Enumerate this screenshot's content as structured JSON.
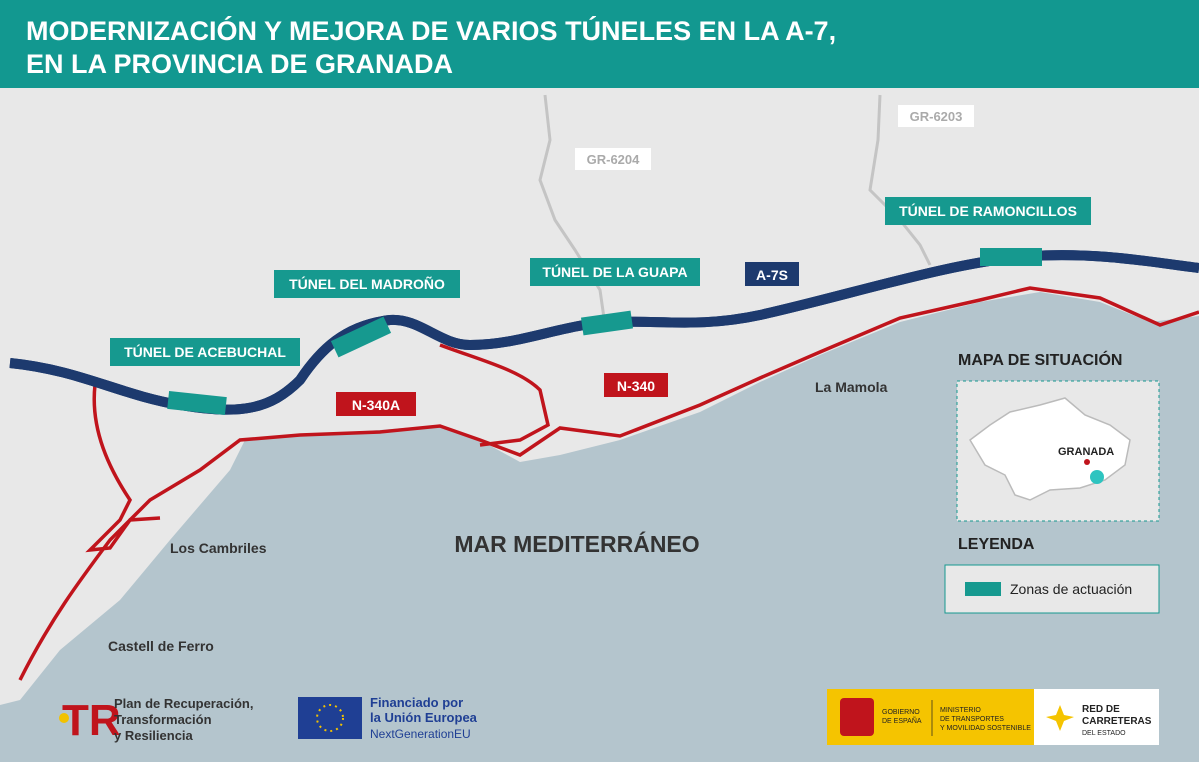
{
  "header": {
    "title": [
      "MODERNIZACIÓN Y MEJORA DE VARIOS TÚNELES EN LA A-7,",
      "EN LA PROVINCIA DE GRANADA"
    ]
  },
  "map": {
    "roads": [
      "GR-6204",
      "GR-6203",
      "A-7S",
      "N-340A",
      "N-340"
    ],
    "tunnels": [
      "TÚNEL DE ACEBUCHAL",
      "TÚNEL DEL MADROÑO",
      "TÚNEL DE LA GUAPA",
      "TÚNEL DE RAMONCILLOS"
    ],
    "places": [
      "La Mamola",
      "Los Cambriles",
      "Castell de Ferro"
    ],
    "sea": "MAR MEDITERRÁNEO"
  },
  "situation": {
    "title": "MAPA DE SITUACIÓN",
    "city": "GRANADA"
  },
  "legend": {
    "title": "LEYENDA",
    "items": [
      "Zonas de actuación"
    ]
  },
  "footer": {
    "recovery": [
      "Plan de Recuperación,",
      "Transformación",
      "y Resiliencia"
    ],
    "eu": [
      "Financiado por",
      "la Unión Europea",
      "NextGenerationEU"
    ],
    "government": [
      "GOBIERNO",
      "DE ESPAÑA"
    ],
    "ministry": [
      "MINISTERIO",
      "DE TRANSPORTES",
      "Y MOVILIDAD SOSTENIBLE"
    ],
    "network": [
      "RED DE",
      "CARRETERAS",
      "DEL ESTADO"
    ]
  }
}
